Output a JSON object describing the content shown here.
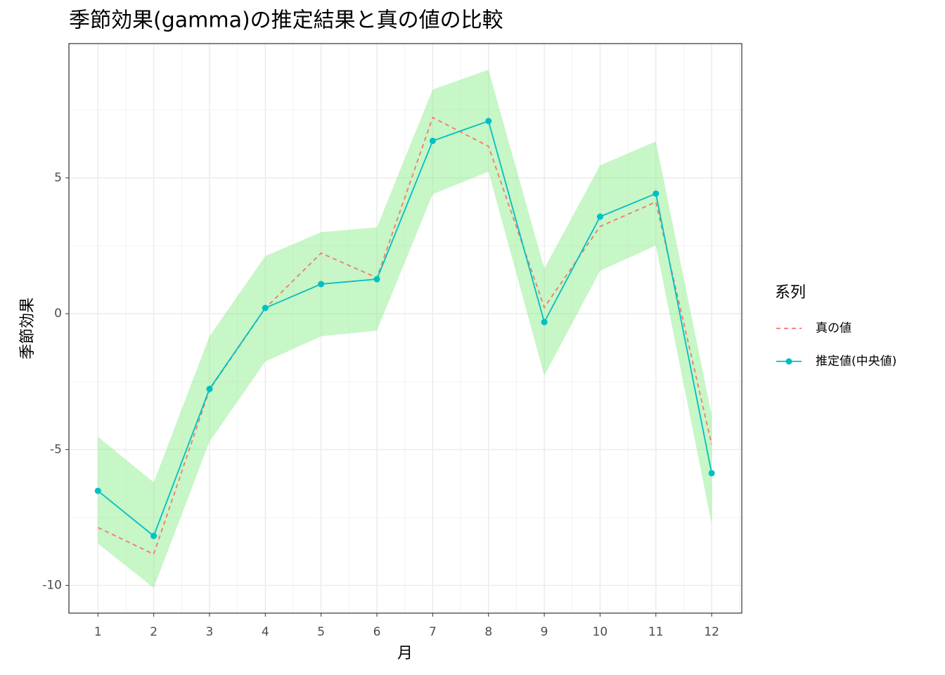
{
  "chart_data": {
    "type": "line",
    "title": "季節効果(gamma)の推定結果と真の値の比較",
    "x_label": "月",
    "y_label": "季節効果",
    "x": [
      1,
      2,
      3,
      4,
      5,
      6,
      7,
      8,
      9,
      10,
      11,
      12
    ],
    "xlim": [
      0.48,
      12.54
    ],
    "xticks": [
      1,
      2,
      3,
      4,
      5,
      6,
      7,
      8,
      9,
      10,
      11,
      12
    ],
    "ylim": [
      -11.02,
      9.94
    ],
    "yticks": [
      -10,
      -5,
      0,
      5
    ],
    "grid": true,
    "legend_title": "系列",
    "legend_position": "right",
    "band": {
      "color": "#90EE90",
      "upper": [
        -4.53,
        -6.21,
        -0.83,
        2.12,
        3.0,
        3.18,
        8.25,
        8.98,
        1.66,
        5.46,
        6.34,
        -3.73
      ],
      "lower": [
        -8.46,
        -10.09,
        -4.71,
        -1.76,
        -0.83,
        -0.62,
        4.4,
        5.23,
        -2.28,
        1.58,
        2.51,
        -7.74
      ]
    },
    "series": [
      {
        "name": "真の値",
        "color": "#F8766D",
        "linestyle": "dashed",
        "markers": false,
        "values": [
          -7.87,
          -8.85,
          -2.8,
          0.2,
          2.23,
          1.32,
          7.22,
          6.16,
          0.23,
          3.21,
          4.11,
          -4.81
        ]
      },
      {
        "name": "推定値(中央値)",
        "color": "#00BFC4",
        "linestyle": "solid",
        "markers": true,
        "values": [
          -6.52,
          -8.18,
          -2.77,
          0.21,
          1.09,
          1.27,
          6.36,
          7.09,
          -0.31,
          3.57,
          4.42,
          -5.87
        ]
      }
    ]
  }
}
